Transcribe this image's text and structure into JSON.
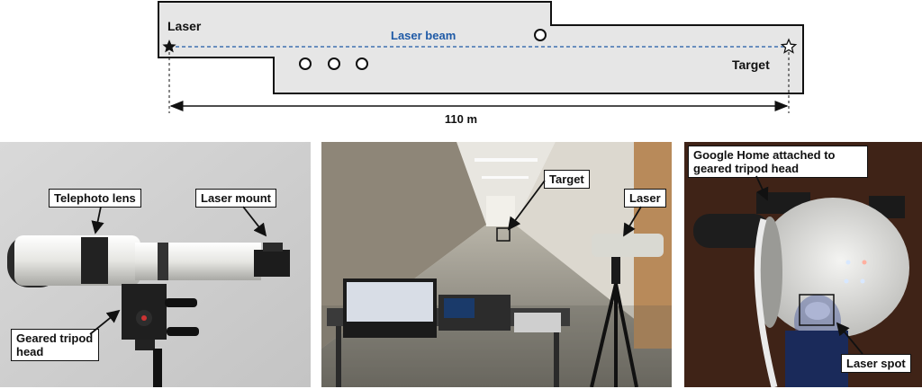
{
  "diagram": {
    "laser_label": "Laser",
    "beam_label": "Laser beam",
    "target_label": "Target",
    "distance_label": "110 m",
    "floor_color": "#e6e6e6",
    "beam_color": "#1f5aa6"
  },
  "photo_left": {
    "callouts": {
      "telephoto": "Telephoto lens",
      "laser_mount": "Laser mount",
      "geared_head": "Geared tripod head"
    }
  },
  "photo_middle": {
    "callouts": {
      "target": "Target",
      "laser": "Laser"
    }
  },
  "photo_right": {
    "callouts": {
      "google_home": "Google Home attached to geared tripod head",
      "laser_spot": "Laser spot"
    }
  }
}
